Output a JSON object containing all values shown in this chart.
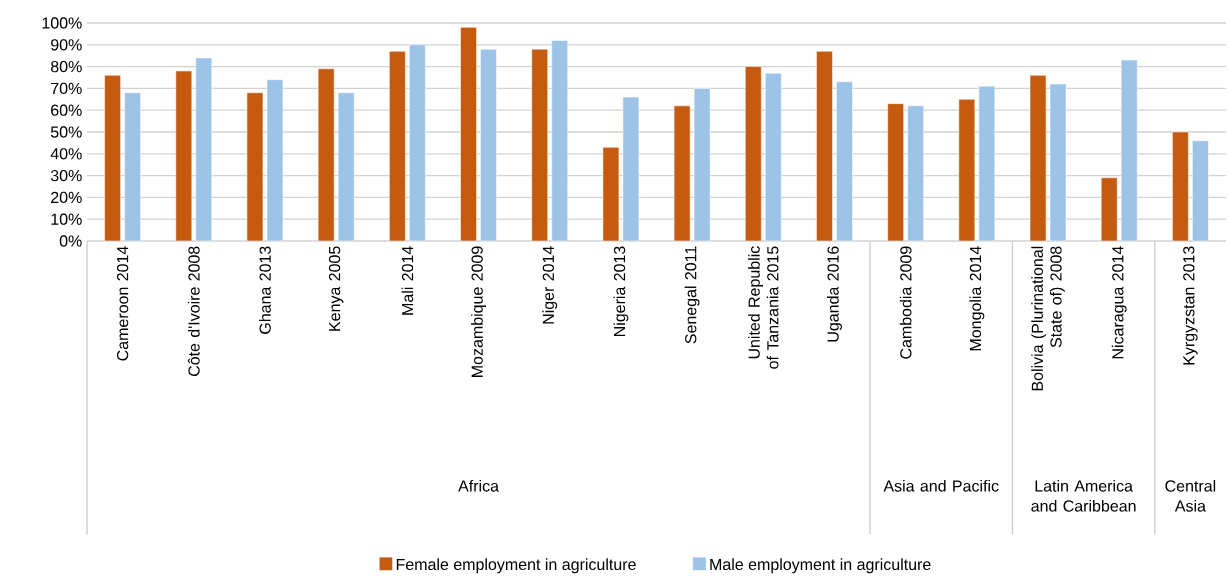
{
  "chart_data": {
    "type": "bar",
    "categories": [
      "Cameroon 2014",
      "Côte d'Ivoire 2008",
      "Ghana 2013",
      "Kenya 2005",
      "Mali 2014",
      "Mozambique 2009",
      "Niger 2014",
      "Nigeria 2013",
      "Senegal 2011",
      "United Republic of Tanzania 2015",
      "Uganda 2016",
      "Cambodia 2009",
      "Mongolia 2014",
      "Bolivia (Plurinational State of) 2008",
      "Nicaragua 2014",
      "Kyrgyzstan 2013"
    ],
    "series": [
      {
        "name": "Female employment in agriculture",
        "color": "#c55a11",
        "values": [
          76,
          78,
          68,
          79,
          87,
          98,
          88,
          43,
          62,
          80,
          87,
          63,
          65,
          76,
          29,
          50
        ]
      },
      {
        "name": "Male employment in agriculture",
        "color": "#9dc3e6",
        "values": [
          68,
          84,
          74,
          68,
          90,
          88,
          92,
          66,
          70,
          77,
          73,
          62,
          71,
          72,
          83,
          46
        ]
      }
    ],
    "ylim": [
      0,
      100
    ],
    "yticks": [
      {
        "value": 0,
        "label": "0%"
      },
      {
        "value": 10,
        "label": "10%"
      },
      {
        "value": 20,
        "label": "20%"
      },
      {
        "value": 30,
        "label": "30%"
      },
      {
        "value": 40,
        "label": "40%"
      },
      {
        "value": 50,
        "label": "50%"
      },
      {
        "value": 60,
        "label": "60%"
      },
      {
        "value": 70,
        "label": "70%"
      },
      {
        "value": 80,
        "label": "80%"
      },
      {
        "value": 90,
        "label": "90%"
      },
      {
        "value": 100,
        "label": "100%"
      }
    ],
    "grid": "y",
    "legend": "bottom",
    "annotations": [
      "Africa",
      "Asia and Pacific",
      "Latin America and Caribbean",
      "Central Asia"
    ]
  }
}
